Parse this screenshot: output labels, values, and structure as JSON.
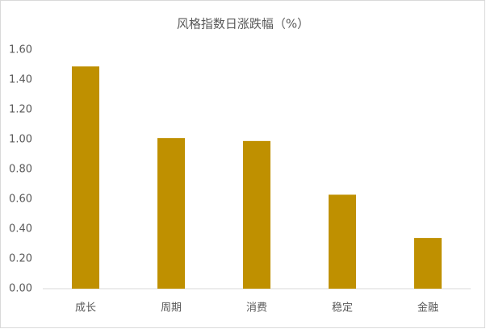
{
  "chart_data": {
    "type": "bar",
    "title": "风格指数日涨跌幅（%）",
    "categories": [
      "成长",
      "周期",
      "消费",
      "稳定",
      "金融"
    ],
    "values": [
      1.49,
      1.01,
      0.99,
      0.63,
      0.34
    ],
    "color": "#bf9000",
    "ylim": [
      0,
      1.6
    ],
    "yticks": [
      {
        "value": 0,
        "label": "0.00"
      },
      {
        "value": 0.2,
        "label": "0.20"
      },
      {
        "value": 0.4,
        "label": "0.40"
      },
      {
        "value": 0.6,
        "label": "0.60"
      },
      {
        "value": 0.8,
        "label": "0.80"
      },
      {
        "value": 1.0,
        "label": "1.00"
      },
      {
        "value": 1.2,
        "label": "1.20"
      },
      {
        "value": 1.4,
        "label": "1.40"
      },
      {
        "value": 1.6,
        "label": "1.60"
      }
    ],
    "grid": false
  }
}
